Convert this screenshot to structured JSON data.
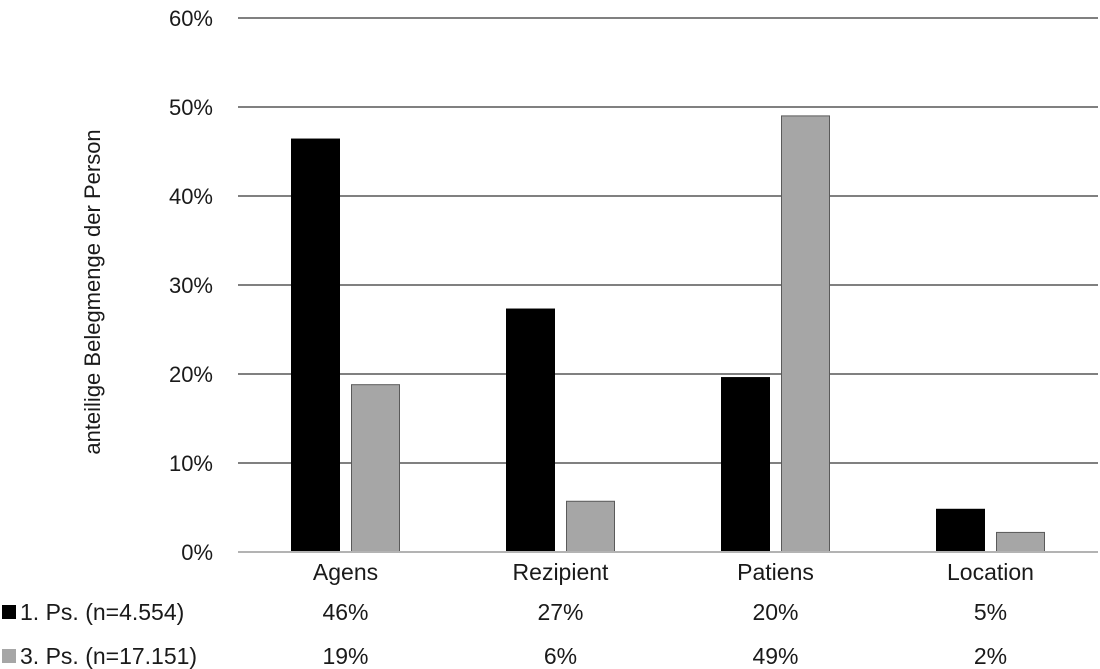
{
  "chart_data": {
    "type": "bar",
    "title": "",
    "xlabel": "",
    "ylabel": "anteilige Belegmenge der Person",
    "categories": [
      "Agens",
      "Rezipient",
      "Patiens",
      "Location"
    ],
    "series": [
      {
        "name": "1. Ps. (n=4.554)",
        "values": [
          46.4,
          27.3,
          19.6,
          4.8
        ],
        "labels": [
          "46%",
          "27%",
          "20%",
          "5%"
        ],
        "color": "#000000"
      },
      {
        "name": "3. Ps. (n=17.151)",
        "values": [
          18.8,
          5.7,
          49.0,
          2.2
        ],
        "labels": [
          "19%",
          "6%",
          "49%",
          "2%"
        ],
        "color": "#a6a6a6"
      }
    ],
    "ylim": [
      0,
      60
    ],
    "yticks": [
      0,
      10,
      20,
      30,
      40,
      50,
      60
    ],
    "ytick_labels": [
      "0%",
      "10%",
      "20%",
      "30%",
      "40%",
      "50%",
      "60%"
    ],
    "grid": true,
    "legend": "data-table-below",
    "colors": {
      "gridline": "#808080",
      "bar_edge": "#5a5a5a"
    }
  }
}
